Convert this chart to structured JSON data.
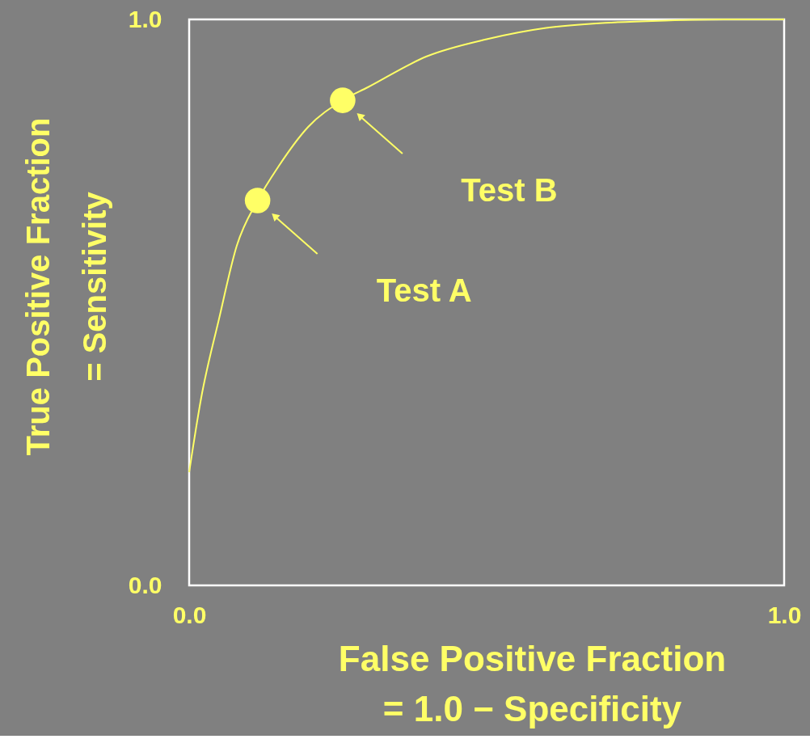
{
  "chart_data": {
    "type": "line",
    "xlabel": "False Positive Fraction\n= 1.0 − Specificity",
    "ylabel": "True Positive Fraction\n= Sensitivity",
    "series": [
      {
        "color": "#ffff66",
        "line_style": "solid",
        "x": [
          0,
          0.02,
          0.05,
          0.08,
          0.115,
          0.15,
          0.2,
          0.258,
          0.3,
          0.4,
          0.5,
          0.6,
          0.7,
          0.8,
          0.9,
          1.0
        ],
        "values": [
          0.2,
          0.33,
          0.47,
          0.6,
          0.68,
          0.74,
          0.81,
          0.857,
          0.88,
          0.935,
          0.965,
          0.985,
          0.994,
          0.998,
          1.0,
          1.0
        ]
      },
      {
        "type": "scatter",
        "color": "#ffff66",
        "marker": "circle",
        "x": [
          0.115,
          0.258
        ],
        "values": [
          0.68,
          0.857
        ]
      }
    ],
    "xlim": [
      0,
      1
    ],
    "ylim": [
      0,
      1
    ],
    "xticks": [
      {
        "value": 0,
        "label": "0.0"
      },
      {
        "value": 1,
        "label": "1.0"
      }
    ],
    "yticks": [
      {
        "value": 0,
        "label": "0.0"
      },
      {
        "value": 1,
        "label": "1.0"
      }
    ],
    "grid": false,
    "annotations": [
      "Test A",
      "Test B"
    ]
  }
}
